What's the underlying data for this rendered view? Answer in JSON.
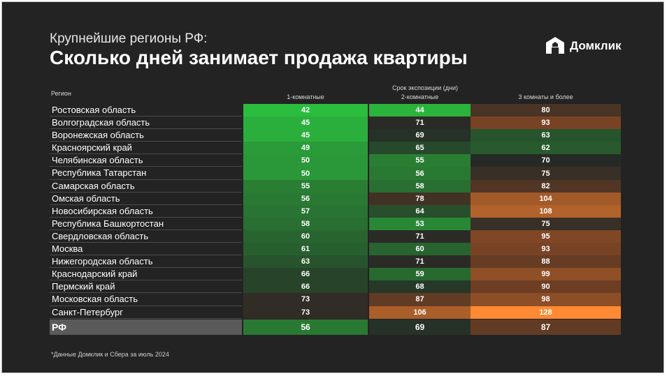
{
  "header": {
    "subtitle": "Крупнейшие регионы РФ:",
    "title": "Сколько дней занимает продажа квартиры",
    "logo_text": "Домклик"
  },
  "footnote": "*Данные Домклик и Сбера за июль 2024",
  "colors": {
    "green_best": "#2bbd3e",
    "dark_neutral": "#262a26",
    "orange_worst": "#ff8a33"
  },
  "chart_data": {
    "type": "table",
    "region_header": "Регион",
    "group_header": "Срок экспозиции (дни)",
    "columns": [
      "1-комнатные",
      "2-комнатные",
      "3 комнаты и более"
    ],
    "rows": [
      {
        "region": "Ростовская область",
        "values": [
          42,
          44,
          80
        ]
      },
      {
        "region": "Волгоградская область",
        "values": [
          45,
          71,
          93
        ]
      },
      {
        "region": "Воронежская область",
        "values": [
          45,
          69,
          63
        ]
      },
      {
        "region": "Красноярский край",
        "values": [
          49,
          65,
          62
        ]
      },
      {
        "region": "Челябинская область",
        "values": [
          50,
          55,
          70
        ]
      },
      {
        "region": "Республика Татарстан",
        "values": [
          50,
          56,
          75
        ]
      },
      {
        "region": "Самарская область",
        "values": [
          55,
          58,
          82
        ]
      },
      {
        "region": "Омская область",
        "values": [
          56,
          78,
          104
        ]
      },
      {
        "region": "Новосибирская область",
        "values": [
          57,
          64,
          108
        ]
      },
      {
        "region": "Республика Башкортостан",
        "values": [
          58,
          53,
          75
        ]
      },
      {
        "region": "Свердловская область",
        "values": [
          60,
          71,
          95
        ]
      },
      {
        "region": "Москва",
        "values": [
          61,
          60,
          93
        ]
      },
      {
        "region": "Нижегородская область",
        "values": [
          63,
          71,
          88
        ]
      },
      {
        "region": "Краснодарский край",
        "values": [
          66,
          59,
          99
        ]
      },
      {
        "region": "Пермский край",
        "values": [
          66,
          68,
          90
        ]
      },
      {
        "region": "Московская область",
        "values": [
          73,
          87,
          98
        ]
      },
      {
        "region": "Санкт-Петербург",
        "values": [
          73,
          106,
          128
        ]
      }
    ],
    "total": {
      "region": "РФ",
      "values": [
        56,
        69,
        87
      ]
    }
  }
}
